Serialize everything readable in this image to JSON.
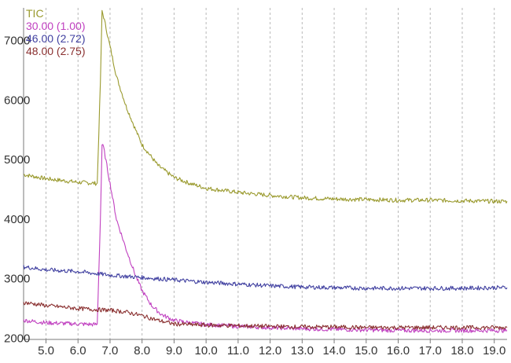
{
  "chart_data": {
    "type": "line",
    "title": "",
    "xlabel": "",
    "ylabel": "",
    "xlim": [
      4.3,
      19.4
    ],
    "ylim": [
      1980,
      7550
    ],
    "grid": {
      "x": true,
      "y": false
    },
    "legend_placement": "top-left",
    "x_ticks": [
      5.0,
      6.0,
      7.0,
      8.0,
      9.0,
      10.0,
      11.0,
      12.0,
      13.0,
      14.0,
      15.0,
      16.0,
      17.0,
      18.0,
      19.0
    ],
    "x_tick_labels": [
      "5.0",
      "6.0",
      "7.0",
      "8.0",
      "9.0",
      "10.0",
      "11.0",
      "12.0",
      "13.0",
      "14.0",
      "15.0",
      "16.0",
      "17.0",
      "18.0",
      "19.0"
    ],
    "y_ticks": [
      2000,
      3000,
      4000,
      5000,
      6000,
      7000
    ],
    "y_tick_labels": [
      "2000",
      "3000",
      "4000",
      "5000",
      "6000",
      "7000"
    ],
    "series": [
      {
        "name": "TIC",
        "color": "#9a9a2e",
        "x": [
          4.3,
          5.0,
          6.0,
          6.6,
          6.7,
          6.75,
          6.8,
          7.0,
          7.2,
          7.5,
          7.8,
          8.0,
          8.5,
          9.0,
          9.5,
          10.0,
          11.0,
          12.0,
          13.0,
          14.0,
          15.0,
          16.0,
          17.0,
          18.0,
          19.0,
          19.4
        ],
        "y": [
          4750,
          4680,
          4620,
          4600,
          6300,
          7500,
          7400,
          6900,
          6400,
          5900,
          5500,
          5250,
          4900,
          4700,
          4600,
          4520,
          4450,
          4400,
          4360,
          4340,
          4330,
          4320,
          4320,
          4310,
          4300,
          4300
        ]
      },
      {
        "name": "30.00 (1.00)",
        "color": "#c040c0",
        "x": [
          4.3,
          5.0,
          6.0,
          6.6,
          6.7,
          6.75,
          6.8,
          7.0,
          7.2,
          7.5,
          7.8,
          8.0,
          8.3,
          8.6,
          9.0,
          9.5,
          10.0,
          11.0,
          12.0,
          13.0,
          14.0,
          15.0,
          16.0,
          17.0,
          18.0,
          19.0,
          19.4
        ],
        "y": [
          2300,
          2260,
          2240,
          2230,
          4000,
          5250,
          5200,
          4600,
          4000,
          3500,
          3050,
          2800,
          2550,
          2400,
          2300,
          2260,
          2230,
          2200,
          2180,
          2160,
          2150,
          2140,
          2130,
          2130,
          2130,
          2130,
          2130
        ]
      },
      {
        "name": "46.00 (2.72)",
        "color": "#4040a0",
        "x": [
          4.3,
          5.0,
          6.0,
          7.0,
          8.0,
          9.0,
          10.0,
          11.0,
          12.0,
          13.0,
          14.0,
          15.0,
          16.0,
          17.0,
          18.0,
          19.0,
          19.4
        ],
        "y": [
          3200,
          3150,
          3120,
          3060,
          3020,
          2980,
          2940,
          2910,
          2880,
          2860,
          2850,
          2840,
          2840,
          2840,
          2840,
          2850,
          2850
        ]
      },
      {
        "name": "48.00 (2.75)",
        "color": "#8a3030",
        "x": [
          4.3,
          5.0,
          6.0,
          6.6,
          7.0,
          7.5,
          8.0,
          8.5,
          9.0,
          10.0,
          11.0,
          12.0,
          13.0,
          14.0,
          15.0,
          16.0,
          17.0,
          18.0,
          19.0,
          19.4
        ],
        "y": [
          2600,
          2550,
          2500,
          2480,
          2470,
          2440,
          2380,
          2300,
          2240,
          2220,
          2210,
          2200,
          2190,
          2190,
          2180,
          2180,
          2180,
          2180,
          2180,
          2180
        ]
      }
    ]
  }
}
